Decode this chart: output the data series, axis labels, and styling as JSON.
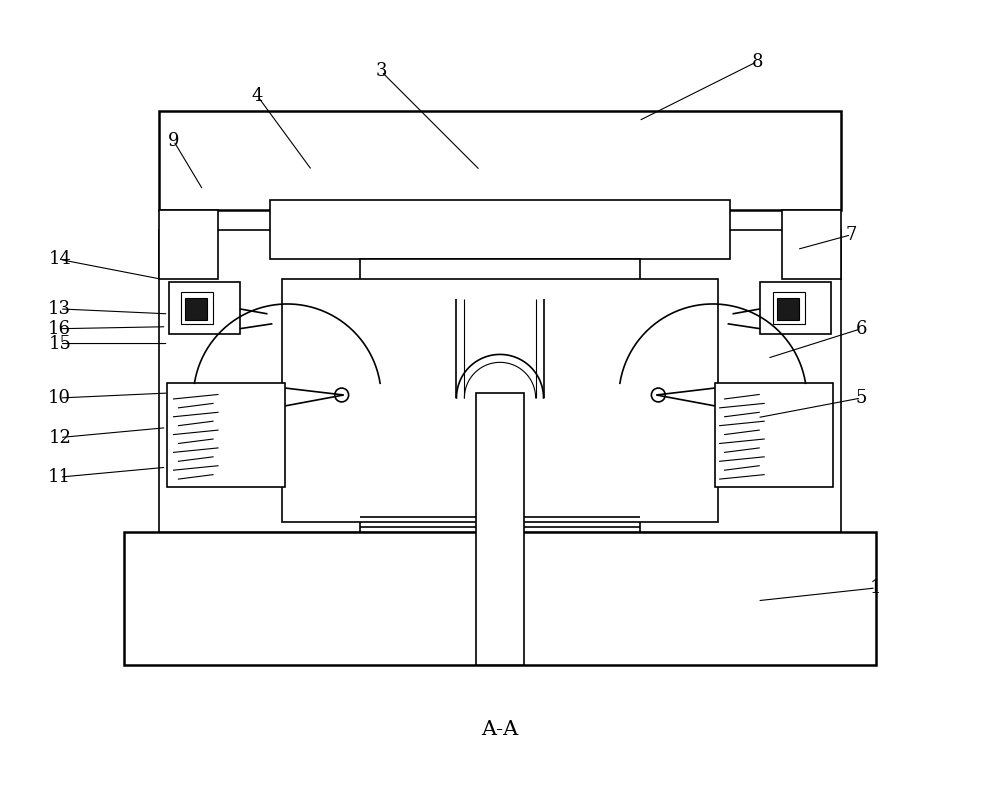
{
  "background_color": "#ffffff",
  "line_color": "#000000",
  "label_fontsize": 13,
  "caption_fontsize": 15,
  "caption": "A-A",
  "lw_thin": 0.8,
  "lw_med": 1.2,
  "lw_thick": 1.8
}
